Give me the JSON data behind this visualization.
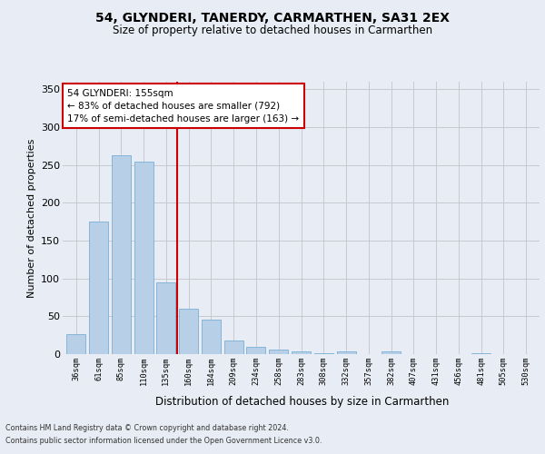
{
  "title1": "54, GLYNDERI, TANERDY, CARMARTHEN, SA31 2EX",
  "title2": "Size of property relative to detached houses in Carmarthen",
  "xlabel": "Distribution of detached houses by size in Carmarthen",
  "ylabel": "Number of detached properties",
  "categories": [
    "36sqm",
    "61sqm",
    "85sqm",
    "110sqm",
    "135sqm",
    "160sqm",
    "184sqm",
    "209sqm",
    "234sqm",
    "258sqm",
    "283sqm",
    "308sqm",
    "332sqm",
    "357sqm",
    "382sqm",
    "407sqm",
    "431sqm",
    "456sqm",
    "481sqm",
    "505sqm",
    "530sqm"
  ],
  "values": [
    27,
    175,
    263,
    255,
    95,
    60,
    46,
    18,
    10,
    6,
    4,
    1,
    4,
    0,
    4,
    0,
    0,
    0,
    1,
    0,
    0
  ],
  "bar_color": "#b8cfe8",
  "bar_edge_color": "#7aafd4",
  "grid_color": "#c8c8d0",
  "bg_color": "#e8ecf4",
  "plot_bg_color": "#e8ecf4",
  "vline_x_index": 4.5,
  "vline_color": "#cc0000",
  "annotation_line1": "54 GLYNDERI: 155sqm",
  "annotation_line2": "← 83% of detached houses are smaller (792)",
  "annotation_line3": "17% of semi-detached houses are larger (163) →",
  "annotation_box_fc": "#ffffff",
  "annotation_box_ec": "#cc0000",
  "ylim": [
    0,
    360
  ],
  "yticks": [
    0,
    50,
    100,
    150,
    200,
    250,
    300,
    350
  ],
  "footnote1": "Contains HM Land Registry data © Crown copyright and database right 2024.",
  "footnote2": "Contains public sector information licensed under the Open Government Licence v3.0."
}
